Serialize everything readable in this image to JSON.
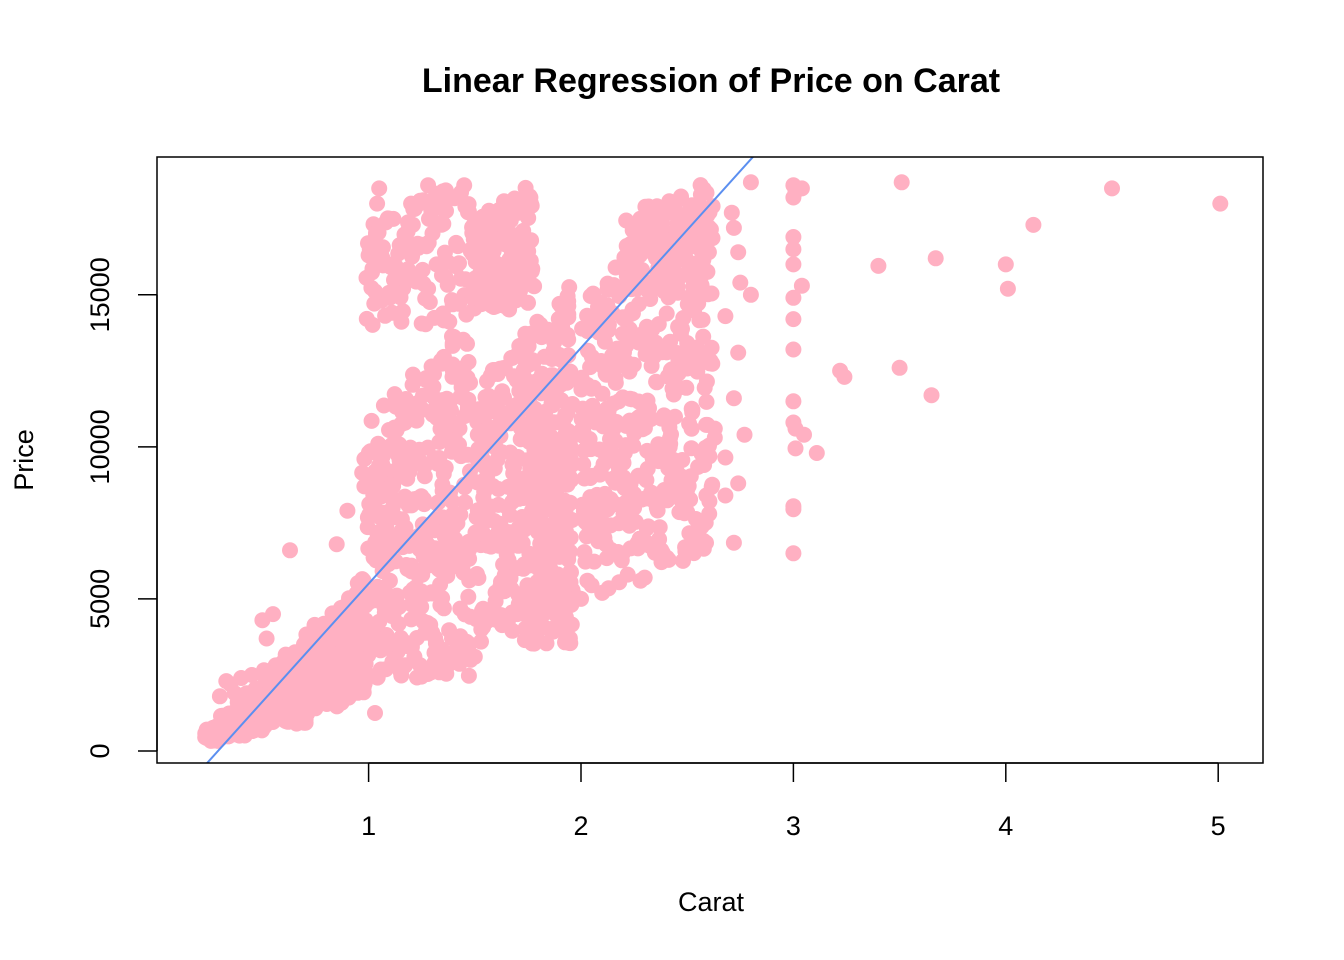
{
  "chart_data": {
    "type": "scatter",
    "title": "Linear Regression of Price on Carat",
    "xlabel": "Carat",
    "ylabel": "Price",
    "xlim": [
      0.2,
      5.2
    ],
    "ylim": [
      -400,
      19500
    ],
    "x_ticks": [
      1,
      2,
      3,
      4,
      5
    ],
    "x_tick_labels": [
      "1",
      "2",
      "3",
      "4",
      "5"
    ],
    "y_ticks": [
      0,
      5000,
      10000,
      15000
    ],
    "y_tick_labels": [
      "0",
      "5000",
      "10000",
      "15000"
    ],
    "grid": false,
    "legend": "none",
    "colors": {
      "points": "#FFB0C2",
      "regression_line": "#5B8FF0",
      "axes": "#000000",
      "background": "#FFFFFF"
    },
    "regression_line": {
      "intercept": -2256,
      "slope": 7756
    },
    "outlier_points": [
      [
        2.8,
        18700
      ],
      [
        3.0,
        18600
      ],
      [
        3.01,
        18400
      ],
      [
        3.04,
        18500
      ],
      [
        3.0,
        18200
      ],
      [
        3.51,
        18700
      ],
      [
        4.5,
        18500
      ],
      [
        5.01,
        18000
      ],
      [
        4.13,
        17300
      ],
      [
        3.0,
        16900
      ],
      [
        3.0,
        16500
      ],
      [
        3.0,
        16000
      ],
      [
        3.4,
        15950
      ],
      [
        3.67,
        16200
      ],
      [
        4.0,
        16000
      ],
      [
        4.01,
        15200
      ],
      [
        3.04,
        15300
      ],
      [
        3.0,
        14900
      ],
      [
        3.0,
        14200
      ],
      [
        2.8,
        15000
      ],
      [
        2.75,
        15400
      ],
      [
        2.74,
        16400
      ],
      [
        2.72,
        17200
      ],
      [
        2.71,
        17700
      ],
      [
        2.68,
        14300
      ],
      [
        2.74,
        13100
      ],
      [
        3.0,
        13200
      ],
      [
        3.22,
        12500
      ],
      [
        3.24,
        12300
      ],
      [
        3.5,
        12600
      ],
      [
        3.65,
        11700
      ],
      [
        3.0,
        11500
      ],
      [
        2.72,
        11600
      ],
      [
        3.0,
        10800
      ],
      [
        3.01,
        10600
      ],
      [
        3.05,
        10400
      ],
      [
        2.63,
        10600
      ],
      [
        2.63,
        10300
      ],
      [
        2.77,
        10400
      ],
      [
        3.11,
        9800
      ],
      [
        3.01,
        9950
      ],
      [
        2.68,
        9650
      ],
      [
        2.5,
        8600
      ],
      [
        2.5,
        8400
      ],
      [
        2.5,
        7850
      ],
      [
        2.68,
        8400
      ],
      [
        2.74,
        8800
      ],
      [
        3.0,
        8050
      ],
      [
        3.0,
        7950
      ],
      [
        2.72,
        6850
      ],
      [
        3.0,
        6500
      ],
      [
        2.48,
        6250
      ],
      [
        2.33,
        8500
      ],
      [
        2.3,
        8300
      ],
      [
        2.25,
        8450
      ],
      [
        2.27,
        9050
      ],
      [
        2.3,
        9050
      ],
      [
        2.4,
        9700
      ],
      [
        2.42,
        10100
      ],
      [
        2.2,
        9000
      ],
      [
        2.15,
        8950
      ],
      [
        2.2,
        7800
      ],
      [
        2.03,
        5600
      ],
      [
        1.98,
        5050
      ],
      [
        2.0,
        5000
      ],
      [
        2.05,
        5450
      ],
      [
        2.13,
        5350
      ],
      [
        2.18,
        5550
      ],
      [
        2.22,
        5800
      ],
      [
        2.28,
        5600
      ],
      [
        2.3,
        5700
      ],
      [
        2.1,
        5200
      ],
      [
        1.83,
        5100
      ],
      [
        1.9,
        5600
      ],
      [
        1.95,
        5900
      ],
      [
        1.8,
        6000
      ],
      [
        0.63,
        6600
      ],
      [
        0.55,
        4500
      ],
      [
        0.5,
        4300
      ],
      [
        0.52,
        3700
      ],
      [
        0.4,
        2400
      ],
      [
        0.33,
        2300
      ],
      [
        0.35,
        2200
      ],
      [
        0.45,
        2500
      ],
      [
        0.3,
        1800
      ],
      [
        0.37,
        1900
      ],
      [
        1.05,
        18500
      ],
      [
        1.04,
        18000
      ],
      [
        1.2,
        18000
      ],
      [
        1.28,
        18600
      ],
      [
        1.35,
        18400
      ],
      [
        1.45,
        18600
      ],
      [
        1.1,
        17500
      ],
      [
        1.0,
        16300
      ],
      [
        1.03,
        1250
      ],
      [
        1.27,
        2550
      ],
      [
        1.48,
        3000
      ],
      [
        1.5,
        3100
      ],
      [
        1.58,
        4400
      ],
      [
        1.7,
        4500
      ],
      [
        1.85,
        6700
      ],
      [
        0.98,
        9600
      ],
      [
        0.97,
        9150
      ],
      [
        0.98,
        8700
      ],
      [
        0.9,
        7900
      ],
      [
        0.85,
        6800
      ],
      [
        1.42,
        16600
      ],
      [
        1.32,
        16000
      ],
      [
        1.28,
        15200
      ],
      [
        1.1,
        14900
      ]
    ],
    "point_regions": [
      {
        "x_range": [
          0.23,
          0.32
        ],
        "y_base": 330,
        "y_spread": 550,
        "count": 70
      },
      {
        "x_range": [
          0.3,
          0.42
        ],
        "y_base": 480,
        "y_spread": 950,
        "count": 90
      },
      {
        "x_range": [
          0.38,
          0.52
        ],
        "y_base": 650,
        "y_spread": 1600,
        "count": 100
      },
      {
        "x_range": [
          0.5,
          0.72
        ],
        "y_base": 900,
        "y_spread": 2700,
        "count": 140
      },
      {
        "x_range": [
          0.7,
          0.92
        ],
        "y_base": 1400,
        "y_spread": 3700,
        "count": 140
      },
      {
        "x_range": [
          0.88,
          0.99
        ],
        "y_base": 1900,
        "y_spread": 4200,
        "count": 90
      },
      {
        "x_range": [
          0.99,
          1.48
        ],
        "y_base": 2400,
        "y_spread": 12000,
        "count": 380
      },
      {
        "x_range": [
          0.99,
          1.48
        ],
        "y_base": 14000,
        "y_spread": 4800,
        "count": 110
      },
      {
        "x_range": [
          1.5,
          1.96
        ],
        "y_base": 3500,
        "y_spread": 12000,
        "count": 380
      },
      {
        "x_range": [
          1.48,
          1.78
        ],
        "y_base": 14500,
        "y_spread": 4200,
        "count": 170
      },
      {
        "x_range": [
          1.78,
          1.96
        ],
        "y_base": 4500,
        "y_spread": 8500,
        "count": 110
      },
      {
        "x_range": [
          2.0,
          2.62
        ],
        "y_base": 6200,
        "y_spread": 12500,
        "count": 400
      },
      {
        "x_range": [
          2.2,
          2.62
        ],
        "y_base": 15000,
        "y_spread": 3800,
        "count": 120
      }
    ]
  }
}
